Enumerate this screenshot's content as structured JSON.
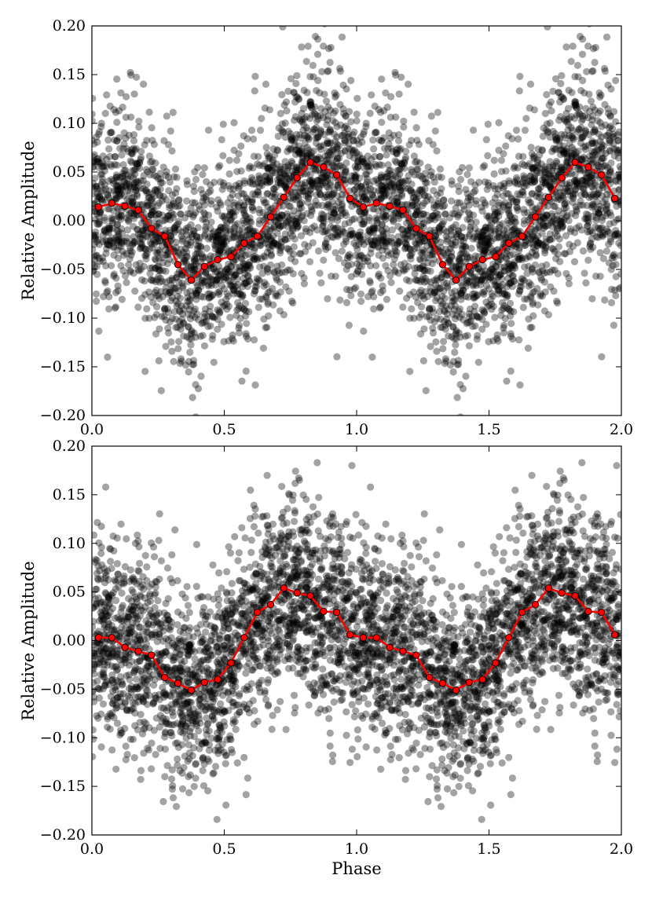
{
  "figure": {
    "xlabel": "Phase"
  },
  "chart_data": [
    {
      "type": "scatter",
      "panel": "top",
      "xlabel": "",
      "ylabel": "Relative Amplitude",
      "xlim": [
        0.0,
        2.0
      ],
      "ylim": [
        -0.2,
        0.2
      ],
      "xticks": [
        "0.0",
        "0.5",
        "1.0",
        "1.5",
        "2.0"
      ],
      "yticks": [
        "0.20",
        "0.15",
        "0.10",
        "0.05",
        "0.00",
        "−0.05",
        "−0.10",
        "−0.15",
        "−0.20"
      ],
      "grid": false,
      "legend": "none",
      "scatter_color": "#000000",
      "line_color": "#ff0000",
      "scatter_description": "dense cloud of semi-transparent black points, phase-folded, repeated over two cycles",
      "binned_series": {
        "x": [
          0.025,
          0.075,
          0.125,
          0.175,
          0.225,
          0.275,
          0.325,
          0.375,
          0.425,
          0.475,
          0.525,
          0.575,
          0.625,
          0.675,
          0.725,
          0.775,
          0.825,
          0.875,
          0.925,
          0.975,
          1.025,
          1.075,
          1.125,
          1.175,
          1.225,
          1.275,
          1.325,
          1.375,
          1.425,
          1.475,
          1.525,
          1.575,
          1.625,
          1.675,
          1.725,
          1.775,
          1.825,
          1.875,
          1.925,
          1.975
        ],
        "y": [
          0.014,
          0.018,
          0.015,
          0.011,
          -0.008,
          -0.016,
          -0.045,
          -0.061,
          -0.047,
          -0.04,
          -0.037,
          -0.023,
          -0.016,
          0.004,
          0.024,
          0.044,
          0.06,
          0.055,
          0.047,
          0.023,
          0.014,
          0.018,
          0.015,
          0.011,
          -0.008,
          -0.016,
          -0.045,
          -0.061,
          -0.047,
          -0.04,
          -0.037,
          -0.023,
          -0.016,
          0.004,
          0.024,
          0.044,
          0.06,
          0.055,
          0.047,
          0.023
        ]
      }
    },
    {
      "type": "scatter",
      "panel": "bottom",
      "xlabel": "Phase",
      "ylabel": "Relative Amplitude",
      "xlim": [
        0.0,
        2.0
      ],
      "ylim": [
        -0.2,
        0.2
      ],
      "xticks": [
        "0.0",
        "0.5",
        "1.0",
        "1.5",
        "2.0"
      ],
      "yticks": [
        "0.20",
        "0.15",
        "0.10",
        "0.05",
        "0.00",
        "−0.05",
        "−0.10",
        "−0.15",
        "−0.20"
      ],
      "grid": false,
      "legend": "none",
      "scatter_color": "#000000",
      "line_color": "#ff0000",
      "scatter_description": "dense cloud of semi-transparent black points, phase-folded, repeated over two cycles",
      "binned_series": {
        "x": [
          0.025,
          0.075,
          0.125,
          0.175,
          0.225,
          0.275,
          0.325,
          0.375,
          0.425,
          0.475,
          0.525,
          0.575,
          0.625,
          0.675,
          0.725,
          0.775,
          0.825,
          0.875,
          0.925,
          0.975,
          1.025,
          1.075,
          1.125,
          1.175,
          1.225,
          1.275,
          1.325,
          1.375,
          1.425,
          1.475,
          1.525,
          1.575,
          1.625,
          1.675,
          1.725,
          1.775,
          1.825,
          1.875,
          1.925,
          1.975
        ],
        "y": [
          0.003,
          0.003,
          -0.007,
          -0.011,
          -0.015,
          -0.038,
          -0.044,
          -0.051,
          -0.043,
          -0.04,
          -0.023,
          0.003,
          0.029,
          0.037,
          0.054,
          0.049,
          0.046,
          0.03,
          0.029,
          0.006,
          0.003,
          0.003,
          -0.007,
          -0.011,
          -0.015,
          -0.038,
          -0.044,
          -0.051,
          -0.043,
          -0.04,
          -0.023,
          0.003,
          0.029,
          0.037,
          0.054,
          0.049,
          0.046,
          0.03,
          0.029,
          0.006
        ]
      }
    }
  ]
}
